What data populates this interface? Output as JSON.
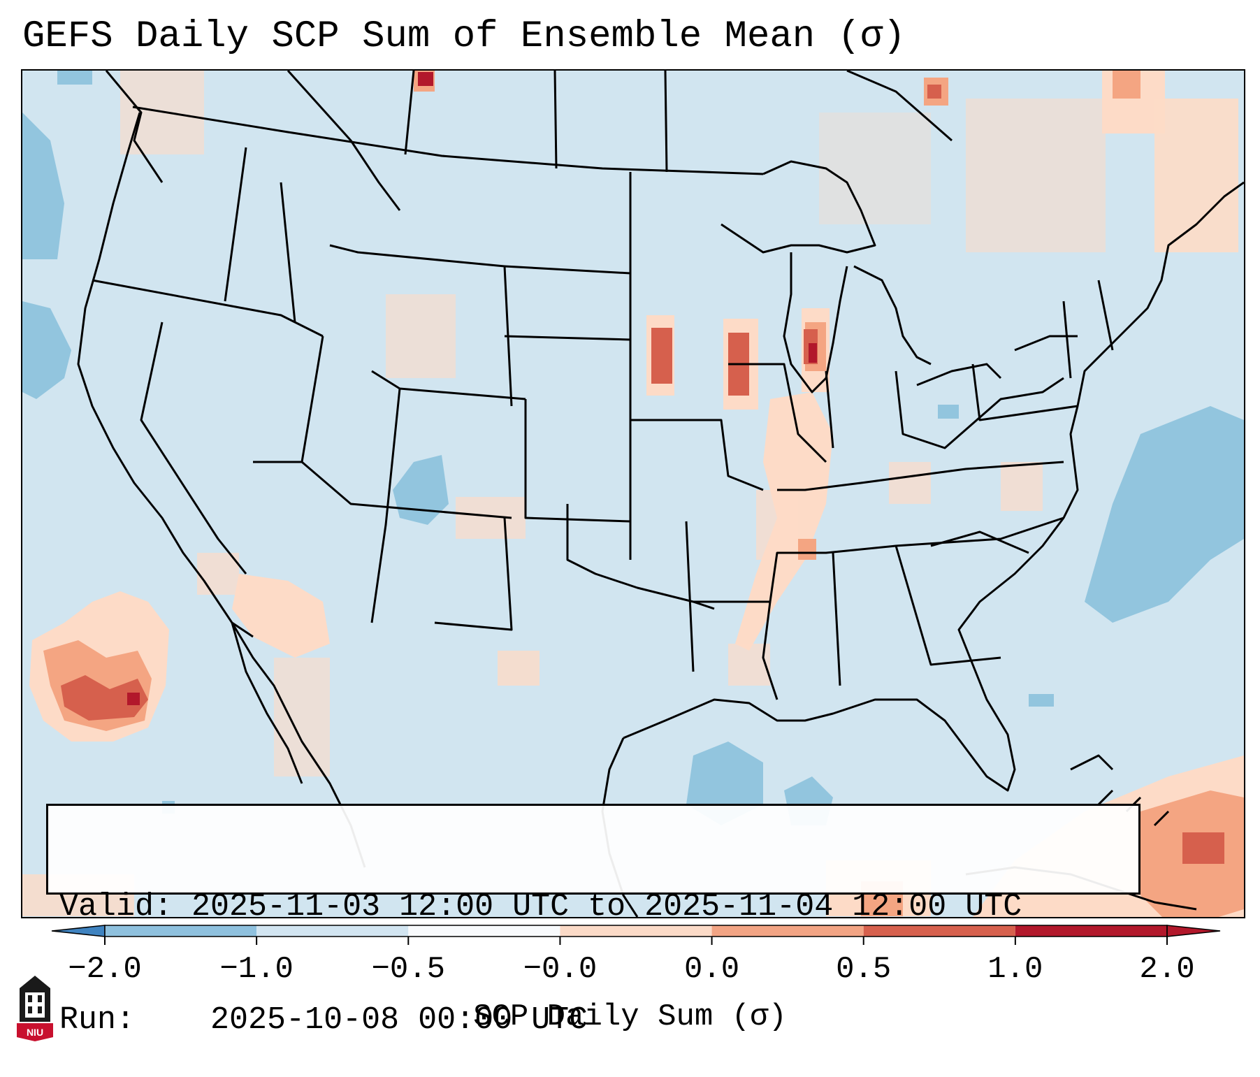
{
  "title": "GEFS Daily SCP Sum of Ensemble Mean (σ)",
  "info": {
    "valid_label": "Valid:",
    "valid_value": "2025-11-03 12:00 UTC to 2025-11-04 12:00 UTC",
    "run_label": "Run:  ",
    "run_value": "2025-10-08 00:00 UTC"
  },
  "colorbar": {
    "title": "SCP Daily Sum (σ)",
    "ticks": [
      "−2.0",
      "−1.0",
      "−0.5",
      "−0.0",
      "0.0",
      "0.5",
      "1.0",
      "2.0"
    ],
    "colors": [
      "#3f83c0",
      "#8fc1de",
      "#d2e5f1",
      "#f8fafc",
      "#fbdac7",
      "#f2a484",
      "#d6604d",
      "#b2182b"
    ]
  },
  "palette": {
    "background": "#d1e5f0",
    "light_red": "#fddbc7",
    "mid_red": "#f4a582",
    "strong_red": "#d6604d",
    "dark_red": "#b2182b",
    "light_blue": "#92c5de",
    "land_border": "#000000"
  },
  "logo": {
    "text": "NIU",
    "icon": "university-tower-icon"
  }
}
